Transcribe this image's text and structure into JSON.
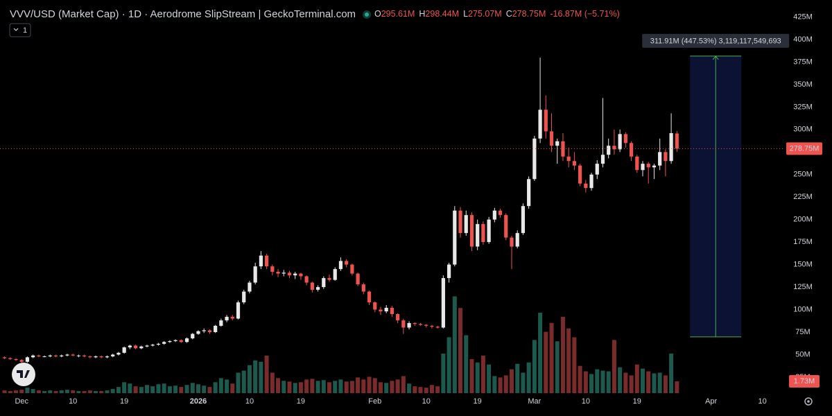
{
  "chart_data": {
    "type": "candlestick",
    "title": "VVV/USD (Market Cap) · 1D · Aerodrome SlipStream | GeckoTerminal.com",
    "legend_items": [
      {
        "key": "O",
        "value": "295.61M"
      },
      {
        "key": "H",
        "value": "298.44M"
      },
      {
        "key": "L",
        "value": "275.07M"
      },
      {
        "key": "C",
        "value": "278.75M"
      }
    ],
    "change": "-16.87M (−5.71%)",
    "interval_badge": "1",
    "last_price_label": "278.75M",
    "last_volume_label": "1.73M",
    "up_color": "#e8e8e8",
    "down_color": "#ef5350",
    "volume_up_color": "#1d5a4d",
    "volume_down_color": "#7a2b2b",
    "xlim": [
      -0.8,
      136.7
    ],
    "ylim": [
      7.2,
      443.9
    ],
    "volume_lim": [
      0,
      57.7
    ],
    "xticks": [
      {
        "value": 3,
        "label": "Dec"
      },
      {
        "value": 12,
        "label": "10"
      },
      {
        "value": 21,
        "label": "19"
      },
      {
        "value": 34,
        "label": "2026"
      },
      {
        "value": 43,
        "label": "10"
      },
      {
        "value": 52,
        "label": "19"
      },
      {
        "value": 65,
        "label": "Feb"
      },
      {
        "value": 74,
        "label": "10"
      },
      {
        "value": 83,
        "label": "19"
      },
      {
        "value": 93,
        "label": "Mar"
      },
      {
        "value": 102,
        "label": "10"
      },
      {
        "value": 111,
        "label": "19"
      },
      {
        "value": 124,
        "label": "Apr"
      },
      {
        "value": 133,
        "label": "10"
      }
    ],
    "yticks": [
      {
        "value": 25,
        "label": "25M"
      },
      {
        "value": 50,
        "label": "50M"
      },
      {
        "value": 75,
        "label": "75M"
      },
      {
        "value": 100,
        "label": "100M"
      },
      {
        "value": 125,
        "label": "125M"
      },
      {
        "value": 150,
        "label": "150M"
      },
      {
        "value": 175,
        "label": "175M"
      },
      {
        "value": 200,
        "label": "200M"
      },
      {
        "value": 225,
        "label": "225M"
      },
      {
        "value": 250,
        "label": "250M"
      },
      {
        "value": 275,
        "label": "275M"
      },
      {
        "value": 300,
        "label": "300M"
      },
      {
        "value": 325,
        "label": "325M"
      },
      {
        "value": 350,
        "label": "350M"
      },
      {
        "value": 375,
        "label": "375M"
      },
      {
        "value": 400,
        "label": "400M"
      },
      {
        "value": 425,
        "label": "425M"
      }
    ],
    "measure": {
      "x": [
        120.3,
        129.3
      ],
      "from": 69.7,
      "to": 381.6,
      "label": "311.91M (447.53%) 3,119,117,549,693"
    },
    "x": [
      0,
      1,
      2,
      3,
      4,
      5,
      6,
      7,
      8,
      9,
      10,
      11,
      12,
      13,
      14,
      15,
      16,
      17,
      18,
      19,
      20,
      21,
      22,
      23,
      24,
      25,
      26,
      27,
      28,
      29,
      30,
      31,
      32,
      33,
      34,
      35,
      36,
      37,
      38,
      39,
      40,
      41,
      42,
      43,
      44,
      45,
      46,
      47,
      48,
      49,
      50,
      51,
      52,
      53,
      54,
      55,
      56,
      57,
      58,
      59,
      60,
      61,
      62,
      63,
      64,
      65,
      66,
      67,
      68,
      69,
      70,
      71,
      72,
      73,
      74,
      75,
      76,
      77,
      78,
      79,
      80,
      81,
      82,
      83,
      84,
      85,
      86,
      87,
      88,
      89,
      90,
      91,
      92,
      93,
      94,
      95,
      96,
      97,
      98,
      99,
      100,
      101,
      102,
      103,
      104,
      105,
      106,
      107,
      108,
      109,
      110,
      111,
      112,
      113,
      114,
      115,
      116,
      117,
      118
    ],
    "ohlc": [
      [
        47,
        48,
        45,
        46,
        0.4
      ],
      [
        46,
        47,
        44,
        45,
        0.3
      ],
      [
        45,
        46,
        43,
        44,
        0.4
      ],
      [
        44,
        45,
        41,
        42,
        0.5
      ],
      [
        42,
        48,
        41,
        47,
        0.8
      ],
      [
        47,
        50,
        46,
        49,
        0.6
      ],
      [
        49,
        50,
        47,
        48,
        0.4
      ],
      [
        48,
        49,
        47,
        48,
        0.3
      ],
      [
        48,
        50,
        47,
        49,
        0.4
      ],
      [
        49,
        50,
        47,
        48,
        0.3
      ],
      [
        48,
        50,
        47,
        49,
        0.4
      ],
      [
        49,
        51,
        48,
        50,
        0.5
      ],
      [
        50,
        51,
        48,
        49,
        0.4
      ],
      [
        49,
        50,
        47,
        49,
        0.3
      ],
      [
        49,
        50,
        47,
        48,
        0.3
      ],
      [
        48,
        49,
        46,
        47,
        0.4
      ],
      [
        47,
        49,
        46,
        48,
        0.3
      ],
      [
        48,
        49,
        46,
        47,
        0.3
      ],
      [
        47,
        49,
        46,
        48,
        0.4
      ],
      [
        48,
        51,
        47,
        50,
        0.6
      ],
      [
        50,
        53,
        49,
        52,
        0.9
      ],
      [
        52,
        59,
        51,
        58,
        1.6
      ],
      [
        58,
        61,
        56,
        60,
        1.4
      ],
      [
        60,
        61,
        56,
        57,
        1.0
      ],
      [
        57,
        60,
        56,
        59,
        0.9
      ],
      [
        59,
        61,
        58,
        60,
        1.2
      ],
      [
        60,
        62,
        59,
        61,
        1.0
      ],
      [
        61,
        63,
        60,
        62,
        1.3
      ],
      [
        62,
        65,
        61,
        64,
        1.4
      ],
      [
        64,
        66,
        63,
        65,
        1.0
      ],
      [
        65,
        67,
        64,
        66,
        1.1
      ],
      [
        66,
        67,
        63,
        64,
        0.9
      ],
      [
        64,
        69,
        63,
        68,
        1.2
      ],
      [
        68,
        74,
        67,
        73,
        1.5
      ],
      [
        73,
        77,
        72,
        76,
        1.3
      ],
      [
        76,
        79,
        74,
        77,
        1.1
      ],
      [
        77,
        78,
        73,
        75,
        0.9
      ],
      [
        75,
        83,
        74,
        82,
        1.6
      ],
      [
        82,
        90,
        81,
        88,
        2.2
      ],
      [
        88,
        94,
        86,
        92,
        2.0
      ],
      [
        92,
        94,
        88,
        90,
        1.4
      ],
      [
        90,
        110,
        89,
        108,
        3.0
      ],
      [
        108,
        122,
        106,
        120,
        3.3
      ],
      [
        120,
        132,
        118,
        130,
        4.1
      ],
      [
        130,
        152,
        128,
        148,
        4.8
      ],
      [
        148,
        165,
        145,
        160,
        4.6
      ],
      [
        160,
        162,
        145,
        148,
        5.5
      ],
      [
        148,
        150,
        138,
        142,
        3.0
      ],
      [
        142,
        145,
        136,
        140,
        2.2
      ],
      [
        140,
        144,
        137,
        141,
        1.8
      ],
      [
        141,
        143,
        135,
        138,
        1.7
      ],
      [
        138,
        142,
        134,
        140,
        1.5
      ],
      [
        140,
        141,
        133,
        137,
        1.6
      ],
      [
        137,
        138,
        127,
        130,
        2.0
      ],
      [
        130,
        131,
        119,
        122,
        2.1
      ],
      [
        122,
        127,
        120,
        125,
        1.8
      ],
      [
        125,
        137,
        123,
        135,
        1.9
      ],
      [
        135,
        139,
        131,
        133,
        1.6
      ],
      [
        133,
        147,
        132,
        145,
        1.8
      ],
      [
        145,
        158,
        143,
        154,
        2.0
      ],
      [
        154,
        156,
        147,
        150,
        1.7
      ],
      [
        150,
        151,
        138,
        140,
        1.8
      ],
      [
        140,
        141,
        126,
        128,
        2.3
      ],
      [
        128,
        130,
        117,
        120,
        2.0
      ],
      [
        120,
        121,
        105,
        108,
        2.4
      ],
      [
        108,
        109,
        97,
        100,
        2.2
      ],
      [
        100,
        103,
        94,
        98,
        1.6
      ],
      [
        98,
        105,
        96,
        102,
        1.5
      ],
      [
        102,
        104,
        92,
        95,
        1.8
      ],
      [
        95,
        96,
        85,
        88,
        2.0
      ],
      [
        88,
        90,
        73,
        80,
        2.5
      ],
      [
        80,
        87,
        78,
        85,
        1.4
      ],
      [
        85,
        86,
        82,
        84,
        1.0
      ],
      [
        84,
        85,
        82,
        83,
        0.9
      ],
      [
        83,
        84,
        80,
        82,
        0.8
      ],
      [
        82,
        83,
        79,
        81,
        1.2
      ],
      [
        81,
        82,
        79,
        80,
        1.0
      ],
      [
        80,
        138,
        79,
        135,
        5.8
      ],
      [
        135,
        152,
        130,
        150,
        8.2
      ],
      [
        150,
        215,
        148,
        210,
        14.2
      ],
      [
        210,
        214,
        180,
        185,
        12.5
      ],
      [
        185,
        210,
        182,
        205,
        8.5
      ],
      [
        205,
        208,
        165,
        170,
        5.0
      ],
      [
        170,
        200,
        166,
        195,
        4.5
      ],
      [
        195,
        198,
        172,
        175,
        5.5
      ],
      [
        175,
        203,
        173,
        200,
        4.2
      ],
      [
        200,
        213,
        197,
        210,
        2.5
      ],
      [
        210,
        212,
        202,
        205,
        2.3
      ],
      [
        205,
        207,
        177,
        180,
        2.6
      ],
      [
        180,
        182,
        145,
        170,
        3.5
      ],
      [
        170,
        188,
        168,
        185,
        4.3
      ],
      [
        185,
        218,
        183,
        215,
        3.0
      ],
      [
        215,
        248,
        212,
        245,
        4.5
      ],
      [
        245,
        293,
        243,
        290,
        7.8
      ],
      [
        290,
        380,
        285,
        322,
        11.8
      ],
      [
        322,
        338,
        290,
        298,
        9.0
      ],
      [
        298,
        318,
        275,
        282,
        10.3
      ],
      [
        282,
        290,
        262,
        287,
        7.6
      ],
      [
        287,
        296,
        265,
        270,
        11.2
      ],
      [
        270,
        280,
        258,
        265,
        9.5
      ],
      [
        265,
        275,
        255,
        260,
        8.2
      ],
      [
        260,
        262,
        237,
        240,
        4.0
      ],
      [
        240,
        244,
        230,
        235,
        3.2
      ],
      [
        235,
        252,
        232,
        250,
        2.8
      ],
      [
        250,
        266,
        245,
        262,
        3.5
      ],
      [
        262,
        335,
        258,
        272,
        3.3
      ],
      [
        272,
        290,
        268,
        282,
        3.2
      ],
      [
        282,
        300,
        272,
        278,
        7.8
      ],
      [
        278,
        300,
        275,
        295,
        3.8
      ],
      [
        295,
        297,
        280,
        285,
        3.0
      ],
      [
        285,
        287,
        265,
        270,
        2.6
      ],
      [
        270,
        272,
        252,
        255,
        4.2
      ],
      [
        255,
        265,
        248,
        262,
        3.6
      ],
      [
        262,
        264,
        240,
        258,
        3.2
      ],
      [
        258,
        262,
        245,
        260,
        2.9
      ],
      [
        260,
        290,
        255,
        275,
        3.0
      ],
      [
        275,
        278,
        248,
        265,
        2.6
      ],
      [
        265,
        318,
        262,
        296,
        5.8
      ],
      [
        295.61,
        298.44,
        275.07,
        278.75,
        1.73
      ]
    ]
  }
}
